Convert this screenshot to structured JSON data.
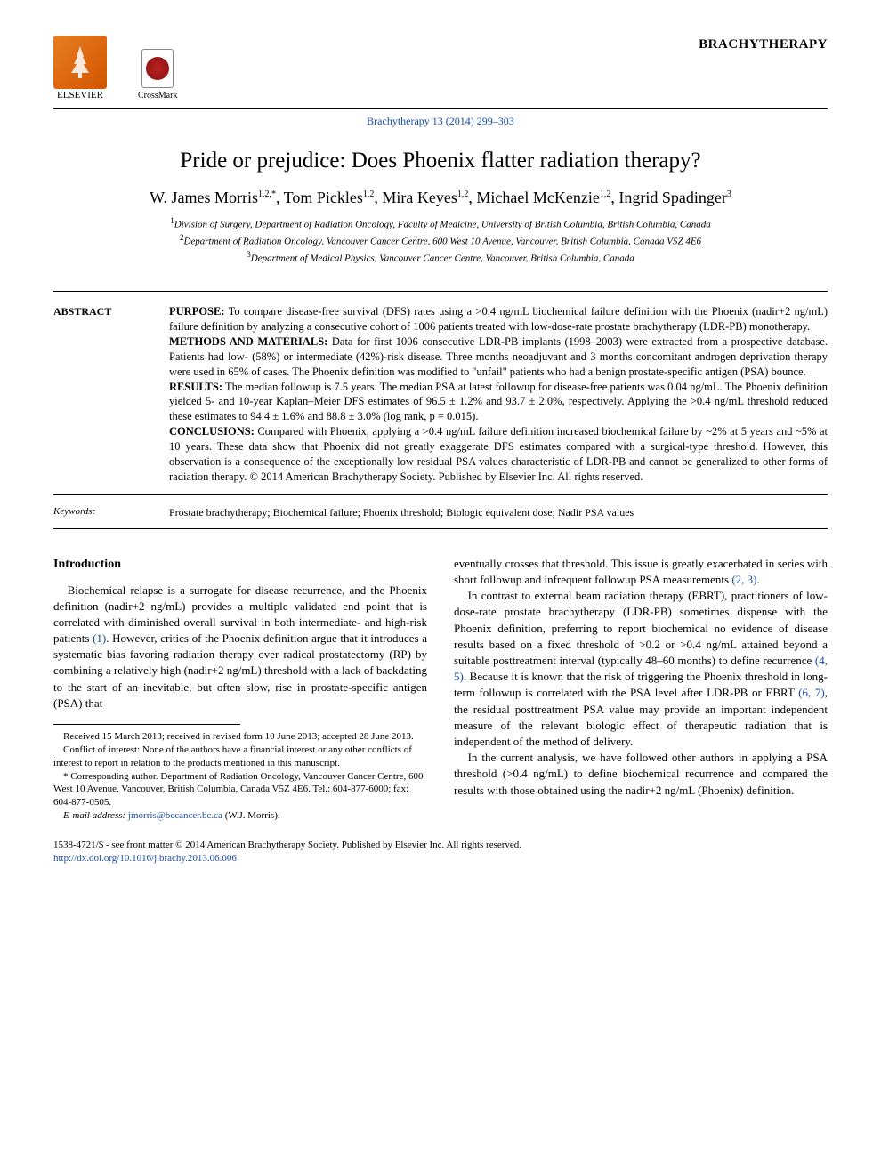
{
  "journal": {
    "publisher_name": "ELSEVIER",
    "crossmark_label": "CrossMark",
    "name": "BRACHYTHERAPY",
    "citation": "Brachytherapy 13 (2014) 299–303"
  },
  "article": {
    "title": "Pride or prejudice: Does Phoenix flatter radiation therapy?",
    "authors_html": "W. James Morris<sup>1,2,*</sup>, Tom Pickles<sup>1,2</sup>, Mira Keyes<sup>1,2</sup>, Michael McKenzie<sup>1,2</sup>, Ingrid Spadinger<sup>3</sup>",
    "affiliations": [
      "<sup>1</sup>Division of Surgery, Department of Radiation Oncology, Faculty of Medicine, University of British Columbia, British Columbia, Canada",
      "<sup>2</sup>Department of Radiation Oncology, Vancouver Cancer Centre, 600 West 10 Avenue, Vancouver, British Columbia, Canada V5Z 4E6",
      "<sup>3</sup>Department of Medical Physics, Vancouver Cancer Centre, Vancouver, British Columbia, Canada"
    ]
  },
  "abstract": {
    "label": "ABSTRACT",
    "sections": {
      "purpose_head": "PURPOSE:",
      "purpose": " To compare disease-free survival (DFS) rates using a >0.4 ng/mL biochemical failure definition with the Phoenix (nadir+2 ng/mL) failure definition by analyzing a consecutive cohort of 1006 patients treated with low-dose-rate prostate brachytherapy (LDR-PB) monotherapy.",
      "methods_head": "METHODS AND MATERIALS:",
      "methods": " Data for first 1006 consecutive LDR-PB implants (1998–2003) were extracted from a prospective database. Patients had low- (58%) or intermediate (42%)-risk disease. Three months neoadjuvant and 3 months concomitant androgen deprivation therapy were used in 65% of cases. The Phoenix definition was modified to \"unfail\" patients who had a benign prostate-specific antigen (PSA) bounce.",
      "results_head": "RESULTS:",
      "results": " The median followup is 7.5 years. The median PSA at latest followup for disease-free patients was 0.04 ng/mL. The Phoenix definition yielded 5- and 10-year Kaplan–Meier DFS estimates of 96.5 ± 1.2% and 93.7 ± 2.0%, respectively. Applying the >0.4 ng/mL threshold reduced these estimates to 94.4 ± 1.6% and 88.8 ± 3.0% (log rank, p = 0.015).",
      "conclusions_head": "CONCLUSIONS:",
      "conclusions": " Compared with Phoenix, applying a >0.4 ng/mL failure definition increased biochemical failure by ~2% at 5 years and ~5% at 10 years. These data show that Phoenix did not greatly exaggerate DFS estimates compared with a surgical-type threshold. However, this observation is a consequence of the exceptionally low residual PSA values characteristic of LDR-PB and cannot be generalized to other forms of radiation therapy. © 2014 American Brachytherapy Society. Published by Elsevier Inc. All rights reserved."
    }
  },
  "keywords": {
    "label": "Keywords:",
    "text": "Prostate brachytherapy; Biochemical failure; Phoenix threshold; Biologic equivalent dose; Nadir PSA values"
  },
  "body": {
    "intro_heading": "Introduction",
    "col1_p1": "Biochemical relapse is a surrogate for disease recurrence, and the Phoenix definition (nadir+2 ng/mL) provides a multiple validated end point that is correlated with diminished overall survival in both intermediate- and high-risk patients (1). However, critics of the Phoenix definition argue that it introduces a systematic bias favoring radiation therapy over radical prostatectomy (RP) by combining a relatively high (nadir+2 ng/mL) threshold with a lack of backdating to the start of an inevitable, but often slow, rise in prostate-specific antigen (PSA) that",
    "col2_p1": "eventually crosses that threshold. This issue is greatly exacerbated in series with short followup and infrequent followup PSA measurements (2, 3).",
    "col2_p2": "In contrast to external beam radiation therapy (EBRT), practitioners of low-dose-rate prostate brachytherapy (LDR-PB) sometimes dispense with the Phoenix definition, preferring to report biochemical no evidence of disease results based on a fixed threshold of >0.2 or >0.4 ng/mL attained beyond a suitable posttreatment interval (typically 48–60 months) to define recurrence (4, 5). Because it is known that the risk of triggering the Phoenix threshold in long-term followup is correlated with the PSA level after LDR-PB or EBRT (6, 7), the residual posttreatment PSA value may provide an important independent measure of the relevant biologic effect of therapeutic radiation that is independent of the method of delivery.",
    "col2_p3": "In the current analysis, we have followed other authors in applying a PSA threshold (>0.4 ng/mL) to define biochemical recurrence and compared the results with those obtained using the nadir+2 ng/mL (Phoenix) definition."
  },
  "footnotes": {
    "received": "Received 15 March 2013; received in revised form 10 June 2013; accepted 28 June 2013.",
    "coi": "Conflict of interest: None of the authors have a financial interest or any other conflicts of interest to report in relation to the products mentioned in this manuscript.",
    "corresponding": "* Corresponding author. Department of Radiation Oncology, Vancouver Cancer Centre, 600 West 10 Avenue, Vancouver, British Columbia, Canada V5Z 4E6. Tel.: 604-877-6000; fax: 604-877-0505.",
    "email_label": "E-mail address:",
    "email": "jmorris@bccancer.bc.ca",
    "email_suffix": "(W.J. Morris)."
  },
  "footer": {
    "copyright": "1538-4721/$ - see front matter © 2014 American Brachytherapy Society. Published by Elsevier Inc. All rights reserved.",
    "doi": "http://dx.doi.org/10.1016/j.brachy.2013.06.006"
  },
  "colors": {
    "link": "#1a4ba3",
    "text": "#000000",
    "background": "#ffffff"
  }
}
